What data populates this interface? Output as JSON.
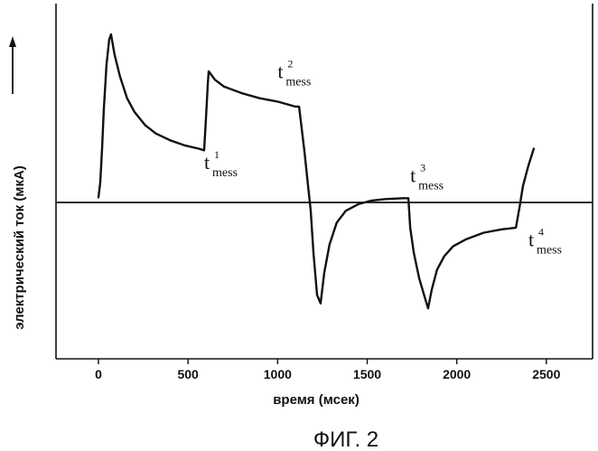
{
  "chart_data": {
    "type": "line",
    "title": "",
    "xlabel": "время (мсек)",
    "ylabel": "электрический ток (мкА)",
    "caption": "ФИГ. 2",
    "xlim": [
      -230,
      2720
    ],
    "ylim": [
      -1.0,
      1.0
    ],
    "x_ticks": [
      0,
      500,
      1000,
      1500,
      2000,
      2500
    ],
    "x_tick_labels": [
      "0",
      "500",
      "1000",
      "1500",
      "2000",
      "2500"
    ],
    "baseline": 0,
    "series": [
      {
        "name": "",
        "points": [
          [
            0,
            0.03
          ],
          [
            10,
            0.12
          ],
          [
            20,
            0.32
          ],
          [
            30,
            0.55
          ],
          [
            45,
            0.82
          ],
          [
            60,
            0.97
          ],
          [
            70,
            1.0
          ],
          [
            90,
            0.88
          ],
          [
            120,
            0.75
          ],
          [
            160,
            0.62
          ],
          [
            200,
            0.54
          ],
          [
            260,
            0.46
          ],
          [
            320,
            0.41
          ],
          [
            400,
            0.37
          ],
          [
            480,
            0.34
          ],
          [
            560,
            0.32
          ],
          [
            590,
            0.31
          ],
          [
            600,
            0.5
          ],
          [
            610,
            0.7
          ],
          [
            615,
            0.78
          ],
          [
            650,
            0.73
          ],
          [
            700,
            0.69
          ],
          [
            800,
            0.65
          ],
          [
            900,
            0.62
          ],
          [
            1000,
            0.6
          ],
          [
            1100,
            0.57
          ],
          [
            1120,
            0.57
          ],
          [
            1150,
            0.3
          ],
          [
            1170,
            0.1
          ],
          [
            1185,
            -0.05
          ],
          [
            1200,
            -0.3
          ],
          [
            1220,
            -0.55
          ],
          [
            1240,
            -0.6
          ],
          [
            1260,
            -0.42
          ],
          [
            1290,
            -0.25
          ],
          [
            1330,
            -0.12
          ],
          [
            1380,
            -0.05
          ],
          [
            1450,
            -0.01
          ],
          [
            1520,
            0.01
          ],
          [
            1600,
            0.02
          ],
          [
            1700,
            0.025
          ],
          [
            1730,
            0.025
          ],
          [
            1740,
            -0.15
          ],
          [
            1760,
            -0.3
          ],
          [
            1790,
            -0.45
          ],
          [
            1820,
            -0.56
          ],
          [
            1840,
            -0.63
          ],
          [
            1860,
            -0.52
          ],
          [
            1890,
            -0.4
          ],
          [
            1930,
            -0.32
          ],
          [
            1980,
            -0.26
          ],
          [
            2050,
            -0.22
          ],
          [
            2150,
            -0.18
          ],
          [
            2250,
            -0.16
          ],
          [
            2330,
            -0.15
          ],
          [
            2350,
            -0.03
          ],
          [
            2370,
            0.1
          ],
          [
            2400,
            0.22
          ],
          [
            2430,
            0.32
          ]
        ]
      }
    ],
    "annotations": [
      {
        "base": "t",
        "sup": "1",
        "sub": "mess",
        "x": 590,
        "y": 0.2
      },
      {
        "base": "t",
        "sup": "2",
        "sub": "mess",
        "x": 1000,
        "y": 0.74
      },
      {
        "base": "t",
        "sup": "3",
        "sub": "mess",
        "x": 1740,
        "y": 0.12
      },
      {
        "base": "t",
        "sup": "4",
        "sub": "mess",
        "x": 2400,
        "y": -0.26
      }
    ],
    "grid": false,
    "legend": "none"
  }
}
